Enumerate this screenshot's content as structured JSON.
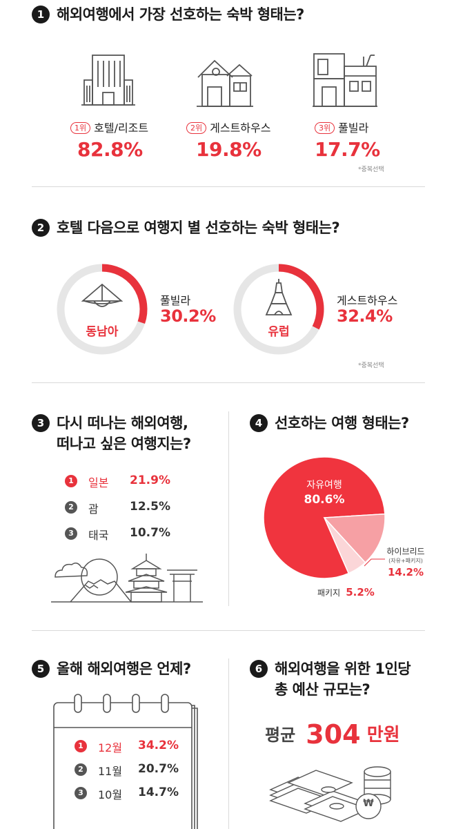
{
  "accent_color": "#e8323c",
  "section1": {
    "number": "1",
    "title": "해외여행에서 가장 선호하는 숙박 형태는?",
    "items": [
      {
        "rank": "1위",
        "name": "호텔/리조트",
        "value": "82.8%",
        "icon": "hotel-building-icon"
      },
      {
        "rank": "2위",
        "name": "게스트하우스",
        "value": "19.8%",
        "icon": "house-icon"
      },
      {
        "rank": "3위",
        "name": "풀빌라",
        "value": "17.7%",
        "icon": "villa-icon"
      }
    ],
    "note": "*중복선택"
  },
  "section2": {
    "number": "2",
    "title": "호텔 다음으로 여행지 별 선호하는 숙박 형태는?",
    "items": [
      {
        "region": "동남아",
        "type": "풀빌라",
        "value": "30.2%",
        "icon": "conical-hat-icon"
      },
      {
        "region": "유럽",
        "type": "게스트하우스",
        "value": "32.4%",
        "icon": "eiffel-tower-icon"
      }
    ],
    "note": "*중복선택"
  },
  "section3": {
    "number": "3",
    "title_line1": "다시 떠나는 해외여행,",
    "title_line2": "떠나고 싶은 여행지는?",
    "items": [
      {
        "rank": "1",
        "name": "일본",
        "value": "21.9%"
      },
      {
        "rank": "2",
        "name": "괌",
        "value": "12.5%"
      },
      {
        "rank": "3",
        "name": "태국",
        "value": "10.7%"
      }
    ]
  },
  "section4": {
    "number": "4",
    "title": "선호하는 여행 형태는?",
    "slices": [
      {
        "name": "자유여행",
        "value": "80.6%"
      },
      {
        "name": "하이브리드",
        "sub": "(자유+패키지)",
        "value": "14.2%"
      },
      {
        "name": "패키지",
        "value": "5.2%"
      }
    ]
  },
  "section5": {
    "number": "5",
    "title": "올해 해외여행은 언제?",
    "items": [
      {
        "rank": "1",
        "name": "12월",
        "value": "34.2%"
      },
      {
        "rank": "2",
        "name": "11월",
        "value": "20.7%"
      },
      {
        "rank": "3",
        "name": "10월",
        "value": "14.7%"
      }
    ]
  },
  "section6": {
    "number": "6",
    "title_line1": "해외여행을 위한 1인당",
    "title_line2": "총 예산 규모는?",
    "avg_label": "평균",
    "amount": "304",
    "unit": "만원",
    "coin_symbol": "₩"
  },
  "chart_data": [
    {
      "type": "bar",
      "title": "해외여행에서 가장 선호하는 숙박 형태는?",
      "categories": [
        "호텔/리조트",
        "게스트하우스",
        "풀빌라"
      ],
      "values": [
        82.8,
        19.8,
        17.7
      ]
    },
    {
      "type": "pie",
      "title": "호텔 다음으로 여행지 별 선호하는 숙박 형태는?",
      "categories": [
        "동남아",
        "유럽"
      ],
      "series": [
        {
          "name": "",
          "values": [
            30.2,
            32.4
          ]
        }
      ]
    },
    {
      "type": "bar",
      "title": "다시 떠나는 해외여행, 떠나고 싶은 여행지는?",
      "categories": [
        "일본",
        "괌",
        "태국"
      ],
      "values": [
        21.9,
        12.5,
        10.7
      ]
    },
    {
      "type": "pie",
      "title": "선호하는 여행 형태는?",
      "categories": [
        "자유여행",
        "하이브리드",
        "패키지"
      ],
      "values": [
        80.6,
        14.2,
        5.2
      ],
      "colors": [
        "#f0343e",
        "#f6a0a4",
        "#fbd6d8"
      ]
    },
    {
      "type": "bar",
      "title": "올해 해외여행은 언제?",
      "categories": [
        "12월",
        "11월",
        "10월"
      ],
      "values": [
        34.2,
        20.7,
        14.7
      ]
    }
  ]
}
